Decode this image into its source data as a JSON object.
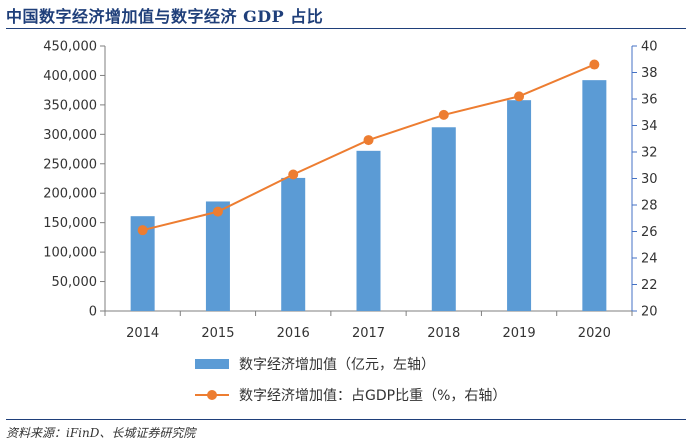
{
  "title": "中国数字经济增加值与数字经济 GDP 占比",
  "source": "资料来源：iFinD、长城证券研究院",
  "colors": {
    "bar": "#5b9bd5",
    "line": "#ed7d31",
    "axis": "#7f7f7f",
    "right_axis": "#4472c4"
  },
  "chart_data": {
    "type": "bar",
    "categories": [
      "2014",
      "2015",
      "2016",
      "2017",
      "2018",
      "2019",
      "2020"
    ],
    "series": [
      {
        "name": "数字经济增加值（亿元，左轴）",
        "type": "bar",
        "axis": "left",
        "values": [
          161000,
          186000,
          226000,
          272000,
          312000,
          358000,
          392000
        ]
      },
      {
        "name": "数字经济增加值：占GDP比重（%，右轴）",
        "type": "line",
        "axis": "right",
        "values": [
          26.1,
          27.5,
          30.3,
          32.9,
          34.8,
          36.2,
          38.6
        ]
      }
    ],
    "ylim_left": [
      0,
      450000
    ],
    "ylim_right": [
      20,
      40
    ],
    "left_ticks": [
      "0",
      "50,000",
      "100,000",
      "150,000",
      "200,000",
      "250,000",
      "300,000",
      "350,000",
      "400,000",
      "450,000"
    ],
    "right_ticks": [
      "20",
      "22",
      "24",
      "26",
      "28",
      "30",
      "32",
      "34",
      "36",
      "38",
      "40"
    ],
    "legend": [
      "数字经济增加值（亿元，左轴）",
      "数字经济增加值：占GDP比重（%，右轴）"
    ],
    "legend_position": "bottom",
    "grid": false
  }
}
